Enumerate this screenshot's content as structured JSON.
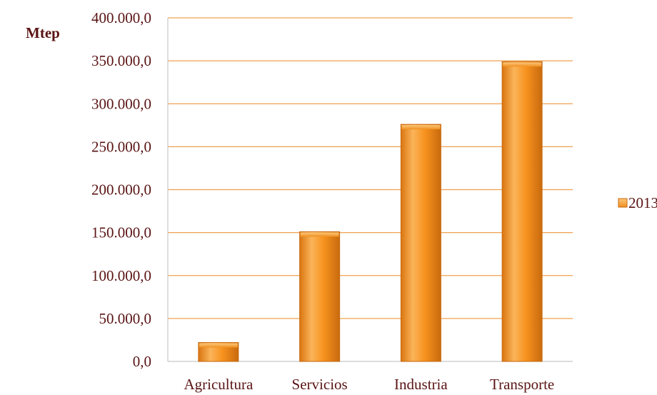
{
  "chart_data": {
    "type": "bar",
    "ylabel": "Mtep",
    "categories": [
      "Agricultura",
      "Servicios",
      "Industria",
      "Transporte"
    ],
    "series": [
      {
        "name": "2013",
        "values": [
          22000,
          151000,
          276000,
          349000
        ]
      }
    ],
    "ylim": [
      0,
      400000
    ],
    "yticks": [
      {
        "value": 0,
        "label": "0,0"
      },
      {
        "value": 50000,
        "label": "50.000,0"
      },
      {
        "value": 100000,
        "label": "100.000,0"
      },
      {
        "value": 150000,
        "label": "150.000,0"
      },
      {
        "value": 200000,
        "label": "200.000,0"
      },
      {
        "value": 250000,
        "label": "250.000,0"
      },
      {
        "value": 300000,
        "label": "300.000,0"
      },
      {
        "value": 350000,
        "label": "350.000,0"
      },
      {
        "value": 400000,
        "label": "400.000,0"
      }
    ],
    "grid": true,
    "legend_position": "right",
    "colors": {
      "bar": "#f7921e",
      "bar_light": "#fbb45a",
      "bar_dark": "#c86a0e",
      "grid": "#f0a050",
      "axis": "#c8c8c8",
      "text": "#5a1414"
    }
  }
}
